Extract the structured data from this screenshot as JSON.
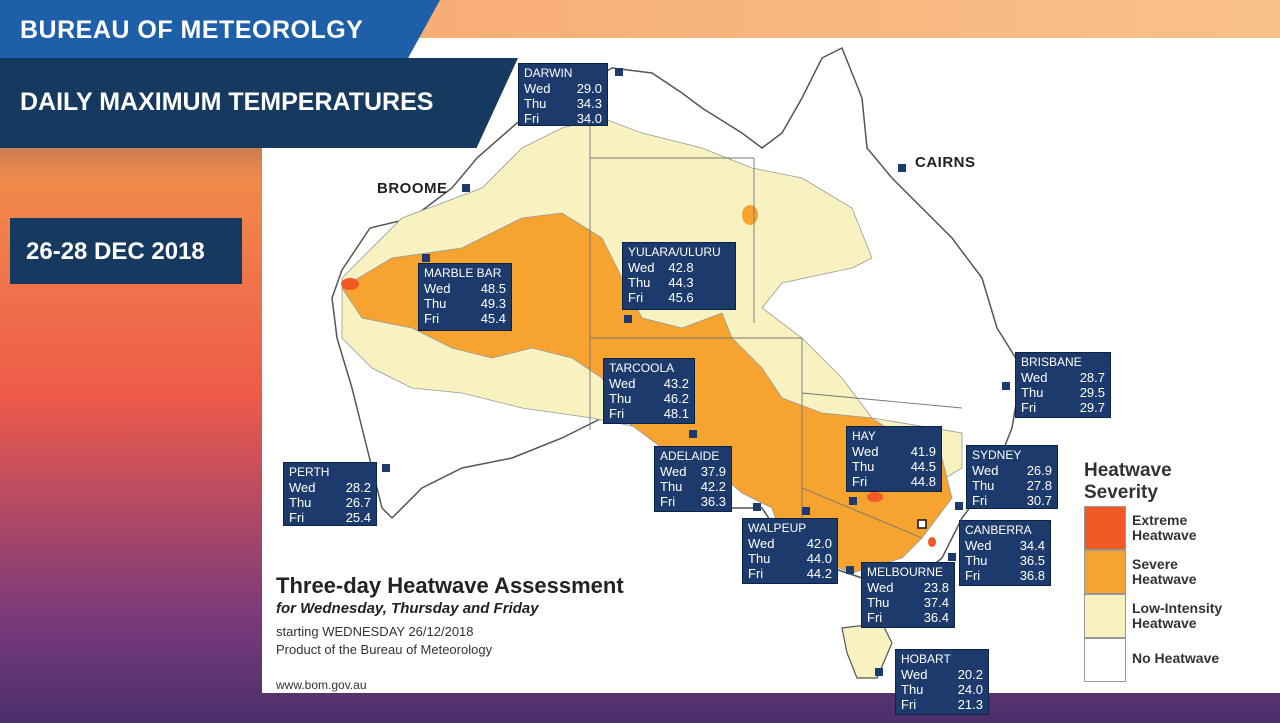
{
  "header": {
    "org": "BUREAU OF METEOROLGY",
    "title": "DAILY MAXIMUM TEMPERATURES",
    "dates": "26-28 DEC 2018"
  },
  "map": {
    "title": "Three-day Heatwave Assessment",
    "subtitle": "for Wednesday, Thursday and Friday",
    "start": "starting WEDNESDAY 26/12/2018",
    "product": "Product of the Bureau of Meteorology",
    "url": "www.bom.gov.au",
    "plain_cities": {
      "broome": "BROOME",
      "cairns": "CAIRNS"
    }
  },
  "cities": {
    "darwin": {
      "name": "DARWIN",
      "wed": "Wed",
      "wed_v": "29.0",
      "thu": "Thu",
      "thu_v": "34.3",
      "fri": "Fri",
      "fri_v": "34.0"
    },
    "marblebar": {
      "name": "MARBLE BAR",
      "wed": "Wed",
      "wed_v": "48.5",
      "thu": "Thu",
      "thu_v": "49.3",
      "fri": "Fri",
      "fri_v": "45.4"
    },
    "yulara": {
      "name": "YULARA/ULURU",
      "wed": "Wed",
      "wed_v": "42.8",
      "thu": "Thu",
      "thu_v": "44.3",
      "fri": "Fri",
      "fri_v": "45.6"
    },
    "tarcoola": {
      "name": "TARCOOLA",
      "wed": "Wed",
      "wed_v": "43.2",
      "thu": "Thu",
      "thu_v": "46.2",
      "fri": "Fri",
      "fri_v": "48.1"
    },
    "brisbane": {
      "name": "BRISBANE",
      "wed": "Wed",
      "wed_v": "28.7",
      "thu": "Thu",
      "thu_v": "29.5",
      "fri": "Fri",
      "fri_v": "29.7"
    },
    "hay": {
      "name": "HAY",
      "wed": "Wed",
      "wed_v": "41.9",
      "thu": "Thu",
      "thu_v": "44.5",
      "fri": "Fri",
      "fri_v": "44.8"
    },
    "sydney": {
      "name": "SYDNEY",
      "wed": "Wed",
      "wed_v": "26.9",
      "thu": "Thu",
      "thu_v": "27.8",
      "fri": "Fri",
      "fri_v": "30.7"
    },
    "adelaide": {
      "name": "ADELAIDE",
      "wed": "Wed",
      "wed_v": "37.9",
      "thu": "Thu",
      "thu_v": "42.2",
      "fri": "Fri",
      "fri_v": "36.3"
    },
    "perth": {
      "name": "PERTH",
      "wed": "Wed",
      "wed_v": "28.2",
      "thu": "Thu",
      "thu_v": "26.7",
      "fri": "Fri",
      "fri_v": "25.4"
    },
    "walpeup": {
      "name": "WALPEUP",
      "wed": "Wed",
      "wed_v": "42.0",
      "thu": "Thu",
      "thu_v": "44.0",
      "fri": "Fri",
      "fri_v": "44.2"
    },
    "canberra": {
      "name": "CANBERRA",
      "wed": "Wed",
      "wed_v": "34.4",
      "thu": "Thu",
      "thu_v": "36.5",
      "fri": "Fri",
      "fri_v": "36.8"
    },
    "melbourne": {
      "name": "MELBOURNE",
      "wed": "Wed",
      "wed_v": "23.8",
      "thu": "Thu",
      "thu_v": "37.4",
      "fri": "Fri",
      "fri_v": "36.4"
    },
    "hobart": {
      "name": "HOBART",
      "wed": "Wed",
      "wed_v": "20.2",
      "thu": "Thu",
      "thu_v": "24.0",
      "fri": "Fri",
      "fri_v": "21.3"
    }
  },
  "legend": {
    "title": "Heatwave Severity",
    "items": [
      {
        "label": "Extreme Heatwave",
        "color": "#f15a24"
      },
      {
        "label": "Severe Heatwave",
        "color": "#f6a330"
      },
      {
        "label": "Low-Intensity Heatwave",
        "color": "#f8f2c0"
      },
      {
        "label": "No Heatwave",
        "color": "#ffffff"
      }
    ]
  }
}
